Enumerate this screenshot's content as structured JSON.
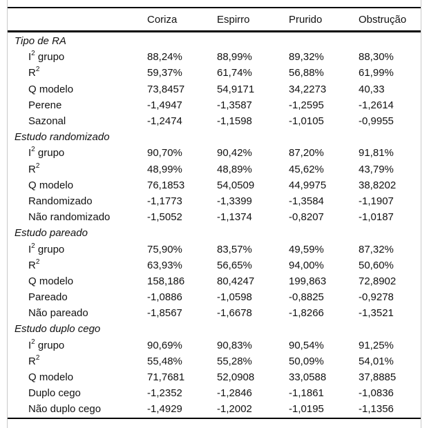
{
  "table": {
    "columns": [
      "Coriza",
      "Espirro",
      "Prurido",
      "Obstrução"
    ],
    "sections": [
      {
        "title": "Tipo de RA",
        "rows": [
          {
            "label": {
              "pre": "I",
              "sup": "2",
              "post": " grupo"
            },
            "values": [
              "88,24%",
              "88,99%",
              "89,32%",
              "88,30%"
            ]
          },
          {
            "label": {
              "pre": "R",
              "sup": "2",
              "post": ""
            },
            "values": [
              "59,37%",
              "61,74%",
              "56,88%",
              "61,99%"
            ]
          },
          {
            "label": {
              "pre": "Q modelo"
            },
            "values": [
              "73,8457",
              "54,9171",
              "34,2273",
              "40,33"
            ]
          },
          {
            "label": {
              "pre": "Perene"
            },
            "values": [
              "-1,4947",
              "-1,3587",
              "-1,2595",
              "-1,2614"
            ]
          },
          {
            "label": {
              "pre": "Sazonal"
            },
            "values": [
              "-1,2474",
              "-1,1598",
              "-1,0105",
              "-0,9955"
            ]
          }
        ]
      },
      {
        "title": "Estudo randomizado",
        "rows": [
          {
            "label": {
              "pre": "I",
              "sup": "2",
              "post": " grupo"
            },
            "values": [
              "90,70%",
              "90,42%",
              "87,20%",
              "91,81%"
            ]
          },
          {
            "label": {
              "pre": "R",
              "sup": "2",
              "post": ""
            },
            "values": [
              "48,99%",
              "48,89%",
              "45,62%",
              "43,79%"
            ]
          },
          {
            "label": {
              "pre": "Q modelo"
            },
            "values": [
              "76,1853",
              "54,0509",
              "44,9975",
              "38,8202"
            ]
          },
          {
            "label": {
              "pre": "Randomizado"
            },
            "values": [
              "-1,1773",
              "-1,3399",
              "-1,3584",
              "-1,1907"
            ]
          },
          {
            "label": {
              "pre": "Não randomizado"
            },
            "values": [
              "-1,5052",
              "-1,1374",
              "-0,8207",
              "-1,0187"
            ]
          }
        ]
      },
      {
        "title": "Estudo pareado",
        "rows": [
          {
            "label": {
              "pre": "I",
              "sup": "2",
              "post": " grupo"
            },
            "values": [
              "75,90%",
              "83,57%",
              "49,59%",
              "87,32%"
            ]
          },
          {
            "label": {
              "pre": "R",
              "sup": "2",
              "post": ""
            },
            "values": [
              "63,93%",
              "56,65%",
              "94,00%",
              "50,60%"
            ]
          },
          {
            "label": {
              "pre": "Q modelo"
            },
            "values": [
              "158,186",
              "80,4247",
              "199,863",
              "72,8902"
            ]
          },
          {
            "label": {
              "pre": "Pareado"
            },
            "values": [
              "-1,0886",
              "-1,0598",
              "-0,8825",
              "-0,9278"
            ]
          },
          {
            "label": {
              "pre": "Não pareado"
            },
            "values": [
              "-1,8567",
              "-1,6678",
              "-1,8266",
              "-1,3521"
            ]
          }
        ]
      },
      {
        "title": "Estudo duplo cego",
        "rows": [
          {
            "label": {
              "pre": "I",
              "sup": "2",
              "post": " grupo"
            },
            "values": [
              "90,69%",
              "90,83%",
              "90,54%",
              "91,25%"
            ]
          },
          {
            "label": {
              "pre": "R",
              "sup": "2",
              "post": ""
            },
            "values": [
              "55,48%",
              "55,28%",
              "50,09%",
              "54,01%"
            ]
          },
          {
            "label": {
              "pre": "Q modelo"
            },
            "values": [
              "71,7681",
              "52,0908",
              "33,0588",
              "37,8885"
            ]
          },
          {
            "label": {
              "pre": "Duplo cego"
            },
            "values": [
              "-1,2352",
              "-1,2846",
              "-1,1861",
              "-1,0836"
            ]
          },
          {
            "label": {
              "pre": "Não duplo cego"
            },
            "values": [
              "-1,4929",
              "-1,2002",
              "-1,0195",
              "-1,1356"
            ]
          }
        ]
      }
    ]
  },
  "colors": {
    "rule": "#000000",
    "frame_border": "#c9c9c9",
    "text": "#111111",
    "background": "#ffffff"
  }
}
